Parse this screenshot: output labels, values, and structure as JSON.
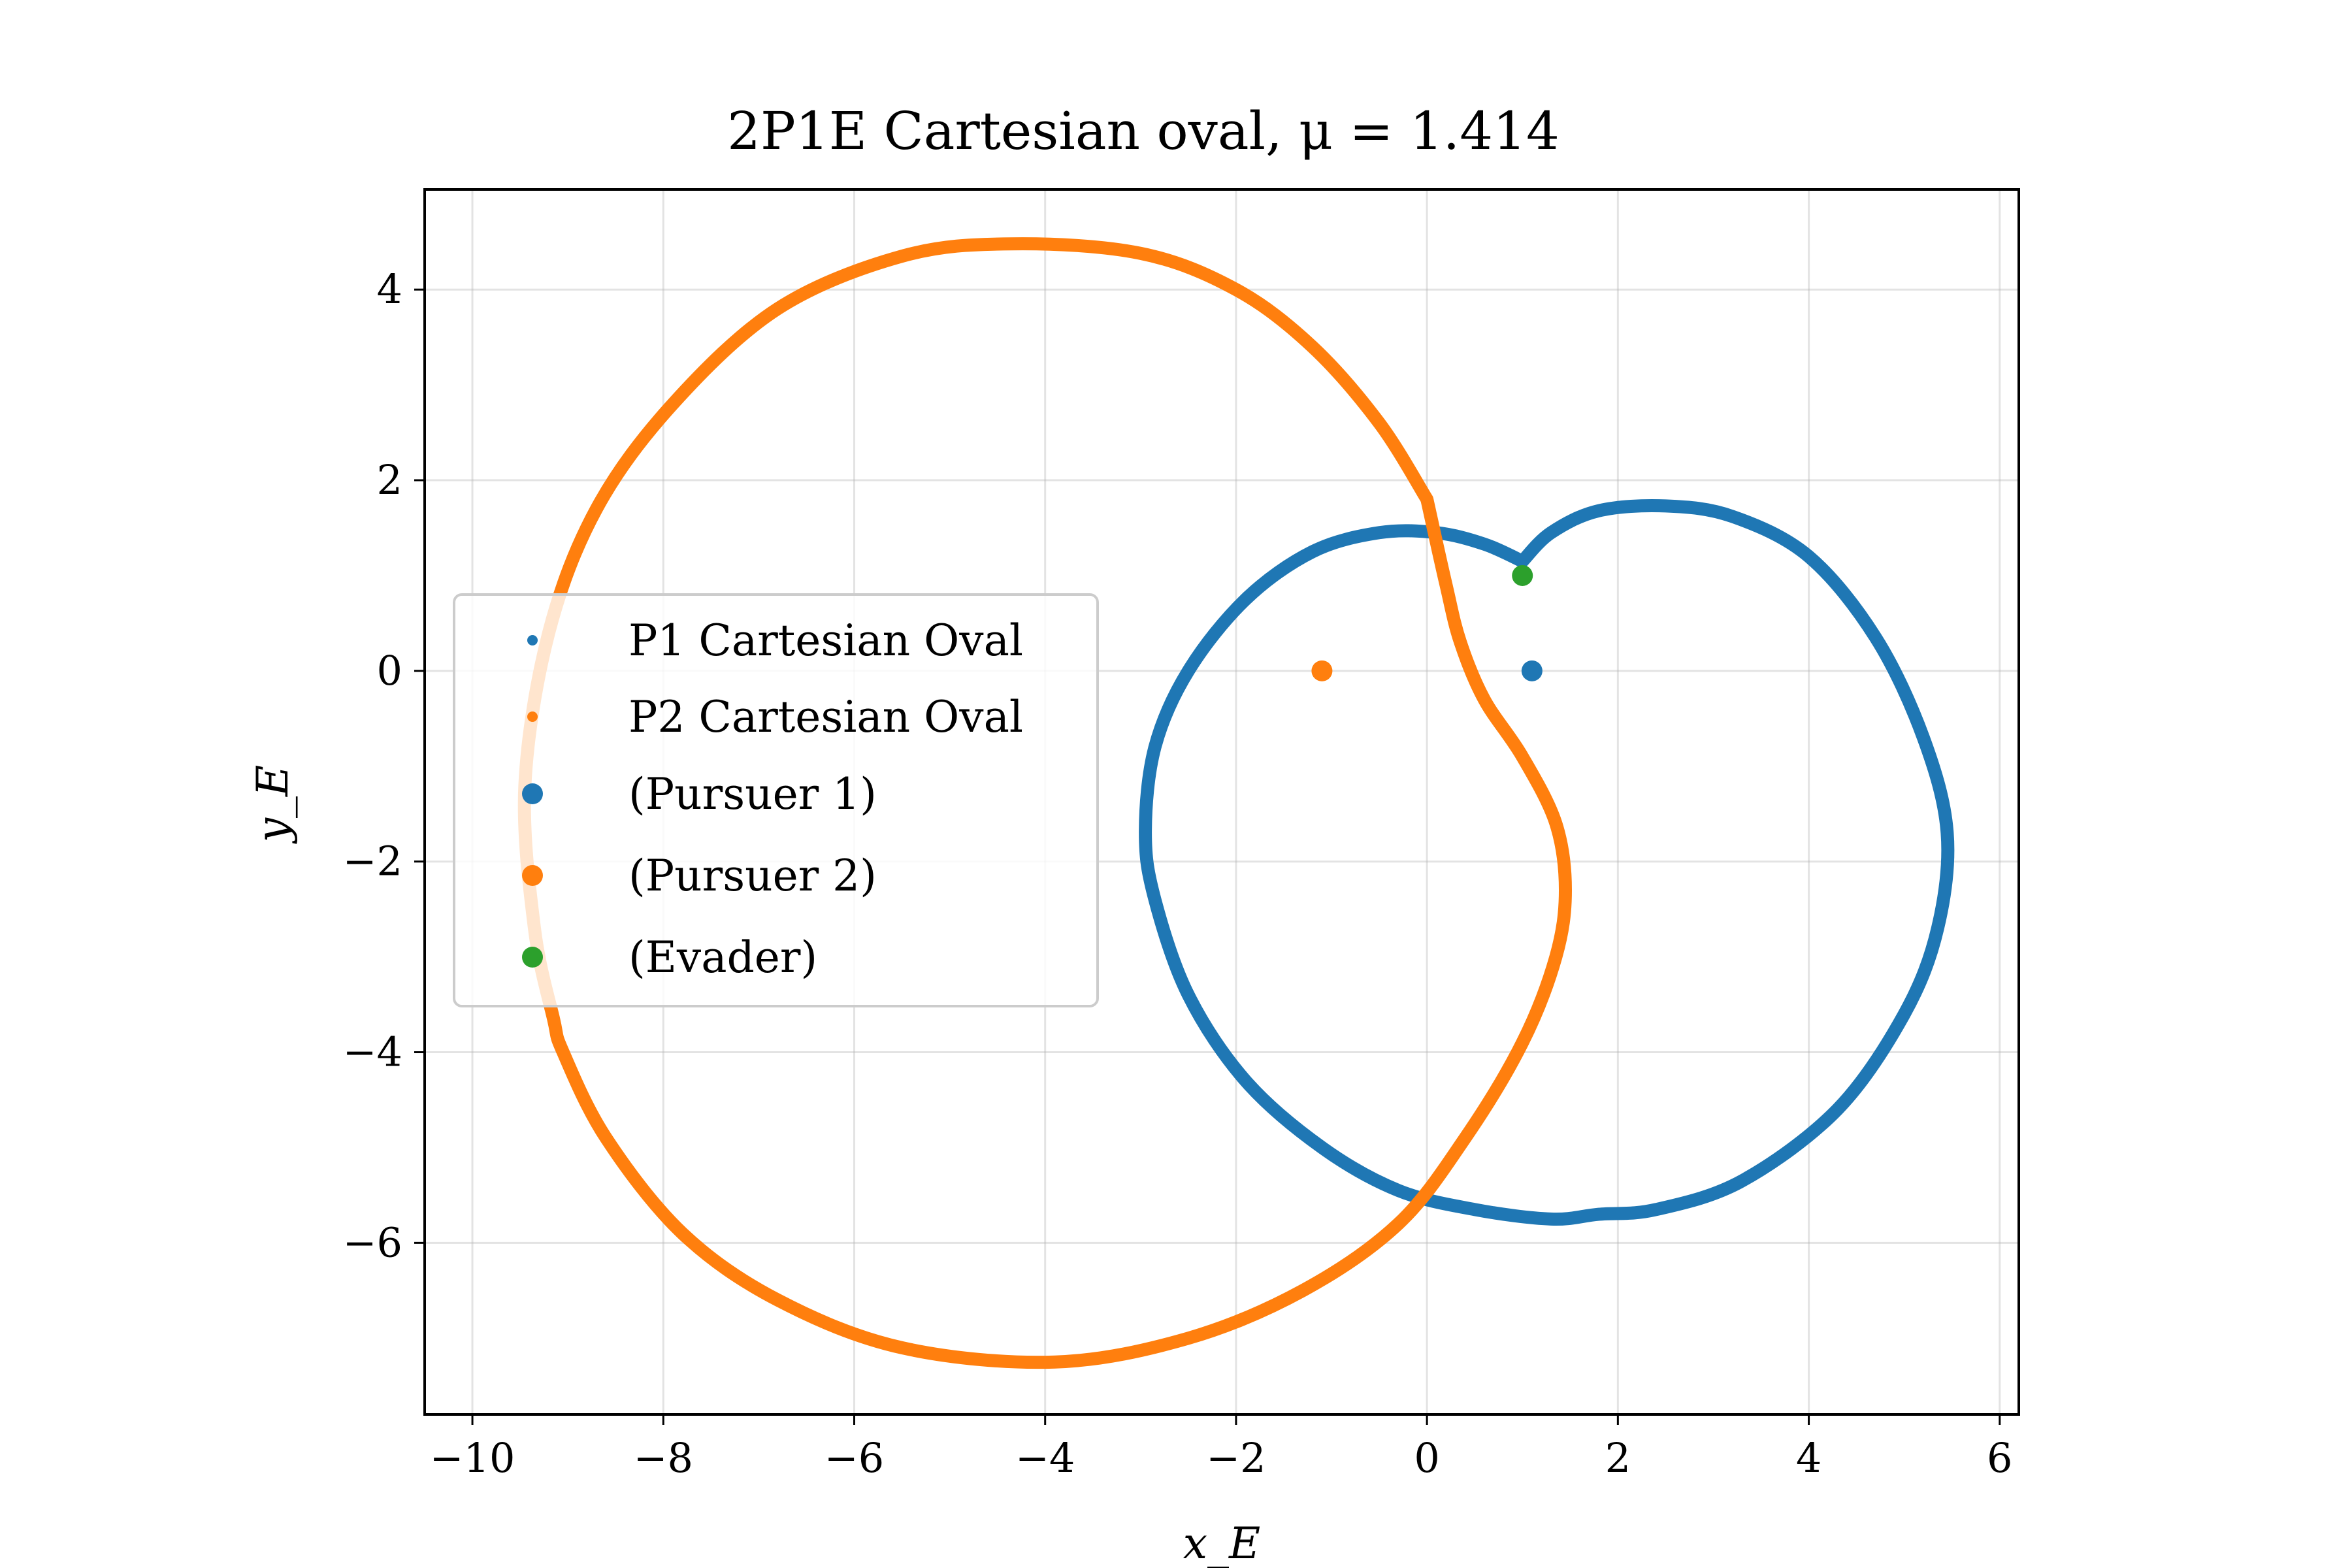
{
  "chart_data": {
    "type": "scatter",
    "title": "2P1E Cartesian oval, μ = 1.414",
    "xlabel": "x_E",
    "ylabel": "y_E",
    "xlim": [
      -10.5,
      6.2
    ],
    "ylim": [
      -7.8,
      5.05
    ],
    "xticks": [
      -10,
      -8,
      -6,
      -4,
      -2,
      0,
      2,
      4,
      6
    ],
    "yticks": [
      -6,
      -4,
      -2,
      0,
      2,
      4
    ],
    "xtick_labels": [
      "−10",
      "−8",
      "−6",
      "−4",
      "−2",
      "0",
      "2",
      "4",
      "6"
    ],
    "ytick_labels": [
      "−6",
      "−4",
      "−2",
      "0",
      "2",
      "4"
    ],
    "grid": true,
    "legend_position": "center-left",
    "legend": [
      "P1 Cartesian Oval",
      "P2 Cartesian Oval",
      "(Pursuer 1)",
      "(Pursuer 2)",
      "(Evader)"
    ],
    "colors": {
      "p1": "#1f77b4",
      "p2": "#ff7f0e",
      "evader": "#2ca02c"
    },
    "series": [
      {
        "name": "P1 Cartesian Oval",
        "color": "#1f77b4",
        "points": [
          [
            1.0,
            1.15
          ],
          [
            1.3,
            1.45
          ],
          [
            1.8,
            1.68
          ],
          [
            2.5,
            1.73
          ],
          [
            3.2,
            1.62
          ],
          [
            4.0,
            1.2
          ],
          [
            4.7,
            0.35
          ],
          [
            5.2,
            -0.7
          ],
          [
            5.45,
            -1.7
          ],
          [
            5.35,
            -2.7
          ],
          [
            5.0,
            -3.6
          ],
          [
            4.3,
            -4.6
          ],
          [
            3.3,
            -5.35
          ],
          [
            2.4,
            -5.65
          ],
          [
            1.8,
            -5.7
          ],
          [
            1.3,
            -5.75
          ],
          [
            0.5,
            -5.65
          ],
          [
            -0.3,
            -5.45
          ],
          [
            -1.1,
            -5.0
          ],
          [
            -1.9,
            -4.3
          ],
          [
            -2.5,
            -3.4
          ],
          [
            -2.85,
            -2.4
          ],
          [
            -2.95,
            -1.7
          ],
          [
            -2.85,
            -0.8
          ],
          [
            -2.5,
            0.0
          ],
          [
            -1.9,
            0.75
          ],
          [
            -1.2,
            1.25
          ],
          [
            -0.5,
            1.45
          ],
          [
            0.1,
            1.45
          ],
          [
            0.6,
            1.33
          ],
          [
            1.0,
            1.15
          ]
        ]
      },
      {
        "name": "P2 Cartesian Oval",
        "color": "#ff7f0e",
        "points": [
          [
            0.0,
            1.8
          ],
          [
            -0.5,
            2.6
          ],
          [
            -1.2,
            3.4
          ],
          [
            -2.0,
            4.0
          ],
          [
            -3.0,
            4.38
          ],
          [
            -4.35,
            4.48
          ],
          [
            -5.5,
            4.35
          ],
          [
            -6.8,
            3.8
          ],
          [
            -7.9,
            2.8
          ],
          [
            -8.7,
            1.7
          ],
          [
            -9.2,
            0.4
          ],
          [
            -9.45,
            -1.2
          ],
          [
            -9.35,
            -2.7
          ],
          [
            -9.15,
            -3.65
          ],
          [
            -9.05,
            -4.0
          ],
          [
            -8.6,
            -4.9
          ],
          [
            -7.8,
            -5.9
          ],
          [
            -6.8,
            -6.6
          ],
          [
            -5.5,
            -7.1
          ],
          [
            -3.9,
            -7.25
          ],
          [
            -2.5,
            -7.0
          ],
          [
            -1.3,
            -6.5
          ],
          [
            -0.3,
            -5.8
          ],
          [
            0.4,
            -4.9
          ],
          [
            1.0,
            -3.9
          ],
          [
            1.35,
            -3.0
          ],
          [
            1.45,
            -2.3
          ],
          [
            1.35,
            -1.6
          ],
          [
            1.0,
            -0.9
          ],
          [
            0.6,
            -0.3
          ],
          [
            0.35,
            0.3
          ],
          [
            0.2,
            0.9
          ],
          [
            0.0,
            1.8
          ]
        ]
      },
      {
        "name": "(Pursuer 1)",
        "color": "#1f77b4",
        "points": [
          [
            1.1,
            0.0
          ]
        ]
      },
      {
        "name": "(Pursuer 2)",
        "color": "#ff7f0e",
        "points": [
          [
            -1.1,
            0.0
          ]
        ]
      },
      {
        "name": "(Evader)",
        "color": "#2ca02c",
        "points": [
          [
            1.0,
            1.0
          ]
        ]
      }
    ]
  }
}
